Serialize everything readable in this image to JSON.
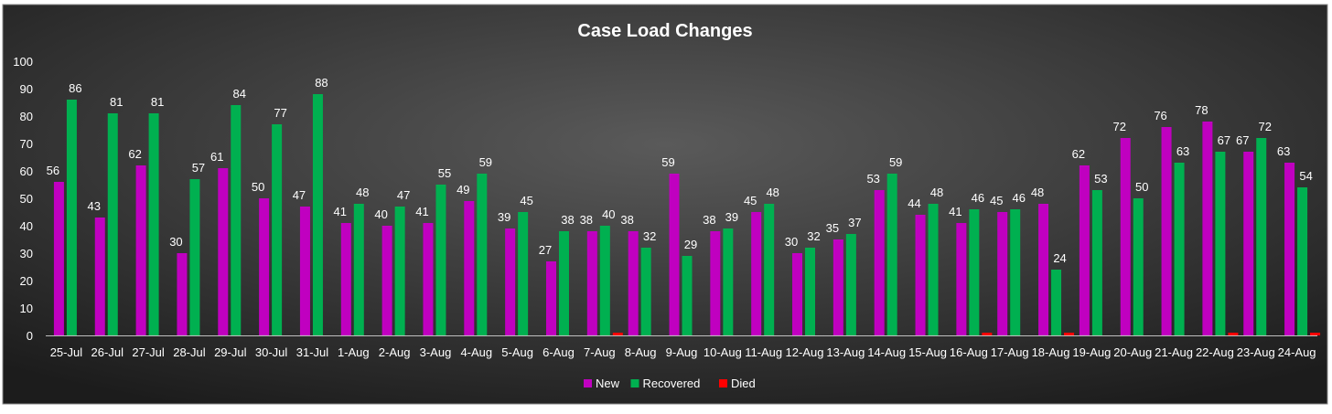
{
  "chart_data": {
    "type": "bar",
    "title": "Case Load Changes",
    "xlabel": "",
    "ylabel": "",
    "ylim": [
      0,
      100
    ],
    "yticks": [
      "0",
      "10",
      "20",
      "30",
      "40",
      "50",
      "60",
      "70",
      "80",
      "90",
      "100"
    ],
    "grid": false,
    "legend_position": "bottom",
    "categories": [
      "25-Jul",
      "26-Jul",
      "27-Jul",
      "28-Jul",
      "29-Jul",
      "30-Jul",
      "31-Jul",
      "1-Aug",
      "2-Aug",
      "3-Aug",
      "4-Aug",
      "5-Aug",
      "6-Aug",
      "7-Aug",
      "8-Aug",
      "9-Aug",
      "10-Aug",
      "11-Aug",
      "12-Aug",
      "13-Aug",
      "14-Aug",
      "15-Aug",
      "16-Aug",
      "17-Aug",
      "18-Aug",
      "19-Aug",
      "20-Aug",
      "21-Aug",
      "22-Aug",
      "23-Aug",
      "24-Aug"
    ],
    "series": [
      {
        "name": "New",
        "color": "#c000c0",
        "values": [
          56,
          43,
          62,
          30,
          61,
          50,
          47,
          41,
          40,
          41,
          49,
          39,
          27,
          38,
          38,
          59,
          38,
          45,
          30,
          35,
          53,
          44,
          41,
          45,
          48,
          62,
          72,
          76,
          78,
          67,
          63
        ],
        "labels": [
          "56",
          "43",
          "62",
          "30",
          "61",
          "50",
          "47",
          "41",
          "40",
          "41",
          "49",
          "39",
          "27",
          "38",
          "38",
          "59",
          "38",
          "45",
          "30",
          "35",
          "53",
          "44",
          "41",
          "45",
          "48",
          "62",
          "72",
          "76",
          "78",
          "67",
          "63"
        ]
      },
      {
        "name": "Recovered",
        "color": "#00b050",
        "values": [
          86,
          81,
          81,
          57,
          84,
          77,
          88,
          48,
          47,
          55,
          59,
          45,
          38,
          40,
          32,
          29,
          39,
          48,
          32,
          37,
          59,
          48,
          46,
          46,
          24,
          53,
          50,
          63,
          67,
          72,
          54
        ],
        "labels": [
          "86",
          "81",
          "81",
          "57",
          "84",
          "77",
          "88",
          "48",
          "47",
          "55",
          "59",
          "45",
          "38",
          "40",
          "32",
          "29",
          "39",
          "48",
          "32",
          "37",
          "59",
          "48",
          "46",
          "46",
          "24",
          "53",
          "50",
          "63",
          "67",
          "72",
          "54"
        ]
      },
      {
        "name": "Died",
        "color": "#ff0000",
        "values": [
          0,
          0,
          0,
          0,
          0,
          0,
          0,
          0,
          0,
          0,
          0,
          0,
          0,
          1,
          0,
          0,
          0,
          0,
          0,
          0,
          0,
          0,
          1,
          0,
          1,
          0,
          0,
          0,
          1,
          0,
          1
        ]
      }
    ]
  }
}
